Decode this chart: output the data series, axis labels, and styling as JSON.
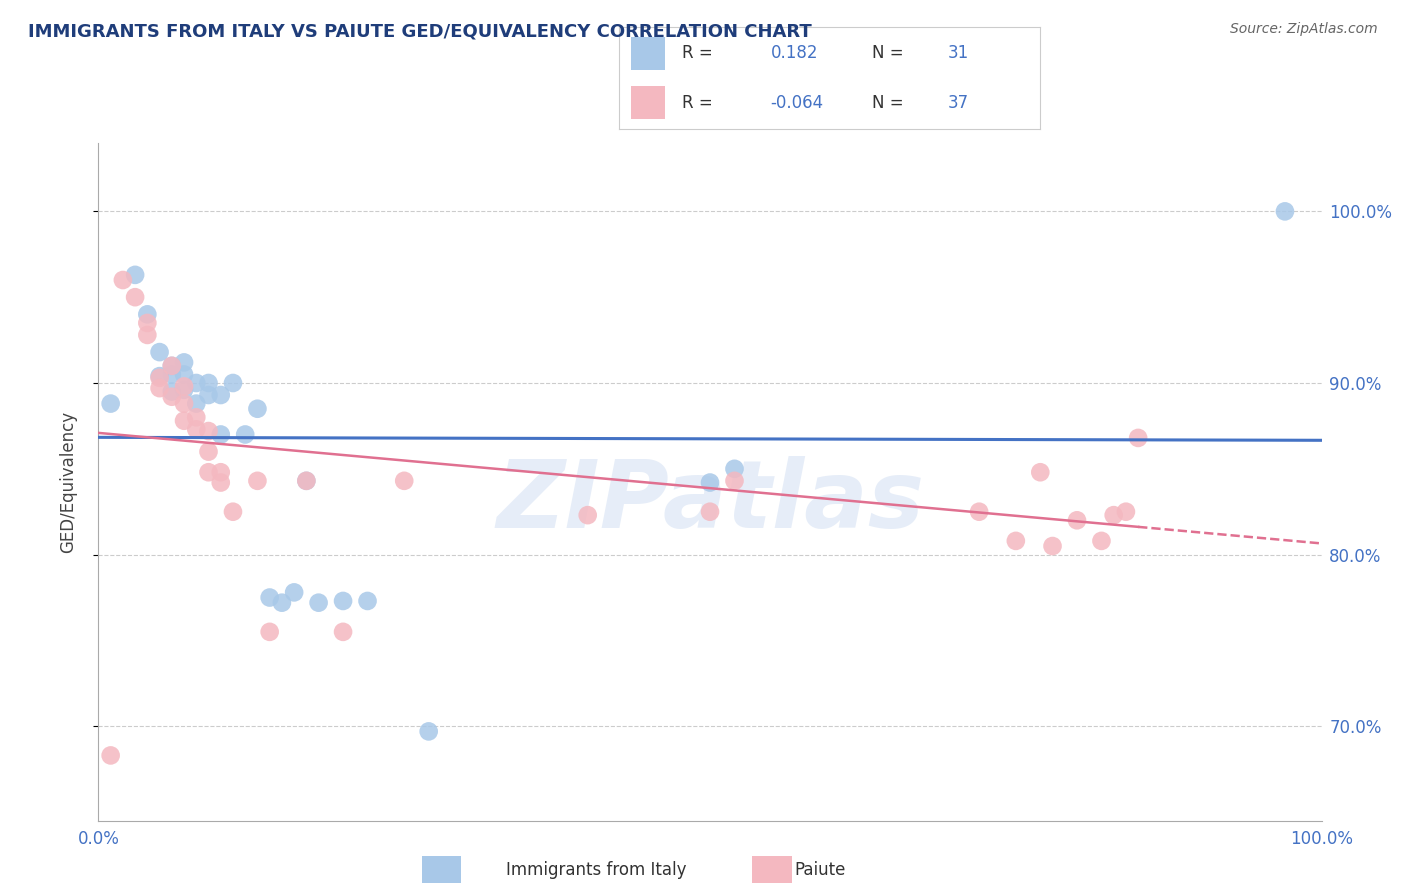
{
  "title": "IMMIGRANTS FROM ITALY VS PAIUTE GED/EQUIVALENCY CORRELATION CHART",
  "source": "Source: ZipAtlas.com",
  "ylabel": "GED/Equivalency",
  "xlim": [
    0.0,
    1.0
  ],
  "ylim": [
    0.645,
    1.04
  ],
  "yticks": [
    0.7,
    0.8,
    0.9,
    1.0
  ],
  "ytick_labels": [
    "70.0%",
    "80.0%",
    "90.0%",
    "100.0%"
  ],
  "xticks": [
    0.0,
    1.0
  ],
  "xtick_labels": [
    "0.0%",
    "100.0%"
  ],
  "legend1_r": "0.182",
  "legend1_n": "31",
  "legend2_r": "-0.064",
  "legend2_n": "37",
  "blue_color": "#a8c8e8",
  "pink_color": "#f4b8c0",
  "line_blue": "#4472c4",
  "line_pink": "#e07090",
  "title_color": "#1f3d7a",
  "source_color": "#666666",
  "axis_label_color": "#444444",
  "tick_color": "#4472c4",
  "legend_r_color": "#4472c4",
  "legend_n_color": "#4472c4",
  "blue_scatter_x": [
    0.01,
    0.03,
    0.04,
    0.05,
    0.05,
    0.06,
    0.06,
    0.06,
    0.07,
    0.07,
    0.07,
    0.08,
    0.08,
    0.09,
    0.09,
    0.1,
    0.1,
    0.11,
    0.12,
    0.13,
    0.14,
    0.15,
    0.16,
    0.17,
    0.18,
    0.2,
    0.22,
    0.27,
    0.5,
    0.52,
    0.97
  ],
  "blue_scatter_y": [
    0.888,
    0.963,
    0.94,
    0.918,
    0.904,
    0.91,
    0.905,
    0.895,
    0.905,
    0.912,
    0.896,
    0.9,
    0.888,
    0.9,
    0.893,
    0.893,
    0.87,
    0.9,
    0.87,
    0.885,
    0.775,
    0.772,
    0.778,
    0.843,
    0.772,
    0.773,
    0.773,
    0.697,
    0.842,
    0.85,
    1.0
  ],
  "pink_scatter_x": [
    0.01,
    0.02,
    0.03,
    0.04,
    0.04,
    0.05,
    0.05,
    0.06,
    0.06,
    0.07,
    0.07,
    0.07,
    0.08,
    0.08,
    0.09,
    0.09,
    0.09,
    0.1,
    0.1,
    0.11,
    0.13,
    0.14,
    0.17,
    0.2,
    0.25,
    0.4,
    0.5,
    0.52,
    0.72,
    0.75,
    0.77,
    0.78,
    0.8,
    0.82,
    0.83,
    0.84,
    0.85
  ],
  "pink_scatter_y": [
    0.683,
    0.96,
    0.95,
    0.928,
    0.935,
    0.903,
    0.897,
    0.91,
    0.892,
    0.898,
    0.888,
    0.878,
    0.88,
    0.873,
    0.872,
    0.86,
    0.848,
    0.848,
    0.842,
    0.825,
    0.843,
    0.755,
    0.843,
    0.755,
    0.843,
    0.823,
    0.825,
    0.843,
    0.825,
    0.808,
    0.848,
    0.805,
    0.82,
    0.808,
    0.823,
    0.825,
    0.868
  ],
  "grid_color": "#cccccc",
  "background_color": "#ffffff",
  "watermark_text": "ZIPatlas",
  "watermark_color": "#c8d8f0",
  "watermark_alpha": 0.45
}
